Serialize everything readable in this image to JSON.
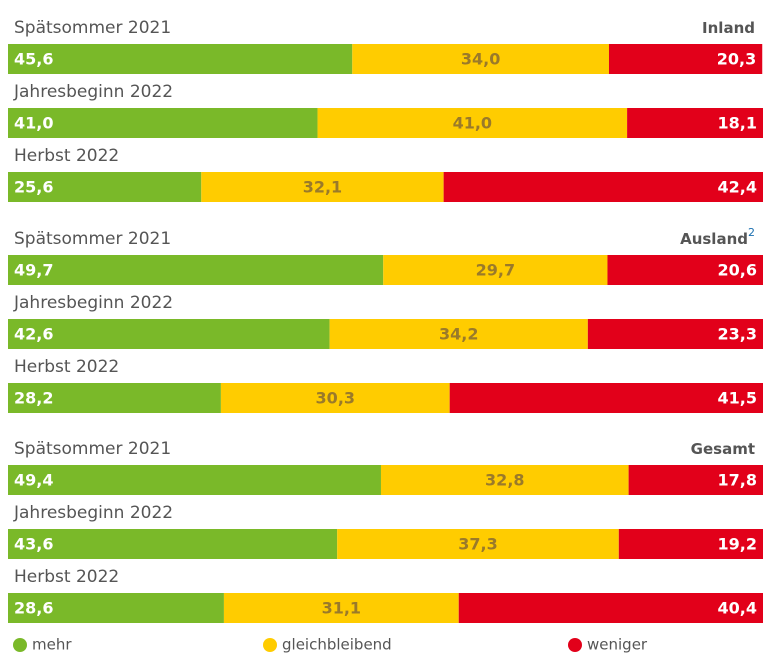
{
  "chart_data": {
    "type": "bar",
    "orientation": "horizontal",
    "stacked": true,
    "xlim": [
      0,
      100
    ],
    "groups": [
      {
        "title": "Inland",
        "categories": [
          "Spätsommer 2021",
          "Jahresbeginn 2022",
          "Herbst 2022"
        ]
      },
      {
        "title": "Ausland",
        "note": "2",
        "categories": [
          "Spätsommer 2021",
          "Jahresbeginn 2022",
          "Herbst 2022"
        ]
      },
      {
        "title": "Gesamt",
        "categories": [
          "Spätsommer 2021",
          "Jahresbeginn 2022",
          "Herbst 2022"
        ]
      }
    ],
    "series": [
      {
        "name": "mehr",
        "color": "#7ab929",
        "label_color": "#ffffff",
        "values": [
          45.6,
          41.0,
          25.6,
          49.7,
          42.6,
          28.2,
          49.4,
          43.6,
          28.6
        ],
        "value_labels": [
          "45,6",
          "41,0",
          "25,6",
          "49,7",
          "42,6",
          "28,2",
          "49,4",
          "43,6",
          "28,6"
        ]
      },
      {
        "name": "gleichbleibend",
        "color": "#ffcc00",
        "label_color": "#9a7a2a",
        "values": [
          34.0,
          41.0,
          32.1,
          29.7,
          34.2,
          30.3,
          32.8,
          37.3,
          31.1
        ],
        "value_labels": [
          "34,0",
          "41,0",
          "32,1",
          "29,7",
          "34,2",
          "30,3",
          "32,8",
          "37,3",
          "31,1"
        ]
      },
      {
        "name": "weniger",
        "color": "#e2001a",
        "label_color": "#ffffff",
        "values": [
          20.3,
          18.1,
          42.4,
          20.6,
          23.3,
          41.5,
          17.8,
          19.2,
          40.4
        ],
        "value_labels": [
          "20,3",
          "18,1",
          "42,4",
          "20,6",
          "23,3",
          "41,5",
          "17,8",
          "19,2",
          "40,4"
        ]
      }
    ]
  }
}
